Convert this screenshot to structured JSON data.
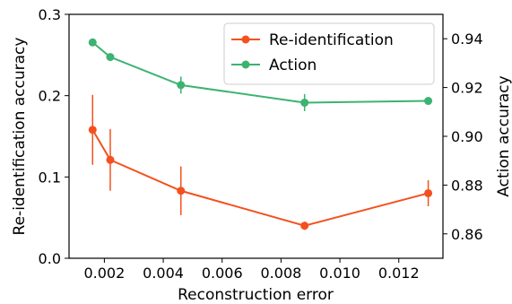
{
  "chart_data": {
    "type": "line",
    "xlabel": "Reconstruction error",
    "ylabel_left": "Re-identification accuracy",
    "ylabel_right": "Action accuracy",
    "xlim": [
      0.0008,
      0.0135
    ],
    "ylim_left": [
      0.0,
      0.3
    ],
    "ylim_right": [
      0.85,
      0.95
    ],
    "xticks": [
      0.002,
      0.004,
      0.006,
      0.008,
      0.01,
      0.012
    ],
    "xtick_labels": [
      "0.002",
      "0.004",
      "0.006",
      "0.008",
      "0.010",
      "0.012"
    ],
    "yticks_left": [
      0.0,
      0.1,
      0.2,
      0.3
    ],
    "ytick_labels_left": [
      "0.0",
      "0.1",
      "0.2",
      "0.3"
    ],
    "yticks_right": [
      0.86,
      0.88,
      0.9,
      0.92,
      0.94
    ],
    "ytick_labels_right": [
      "0.86",
      "0.88",
      "0.90",
      "0.92",
      "0.94"
    ],
    "grid": false,
    "legend_position": "top-right",
    "series": [
      {
        "name": "Re-identification",
        "axis": "left",
        "color": "#f4511e",
        "x": [
          0.0016,
          0.0022,
          0.0046,
          0.0088,
          0.013
        ],
        "y": [
          0.158,
          0.121,
          0.083,
          0.04,
          0.08
        ],
        "err": [
          0.043,
          0.038,
          0.03,
          0.005,
          0.016
        ]
      },
      {
        "name": "Action",
        "axis": "right",
        "color": "#3cb371",
        "x": [
          0.0016,
          0.0022,
          0.0046,
          0.0088,
          0.013
        ],
        "y": [
          0.9385,
          0.9325,
          0.921,
          0.9138,
          0.9145
        ],
        "err": [
          0.0015,
          0.0015,
          0.0035,
          0.0035,
          0.0012
        ]
      }
    ]
  }
}
